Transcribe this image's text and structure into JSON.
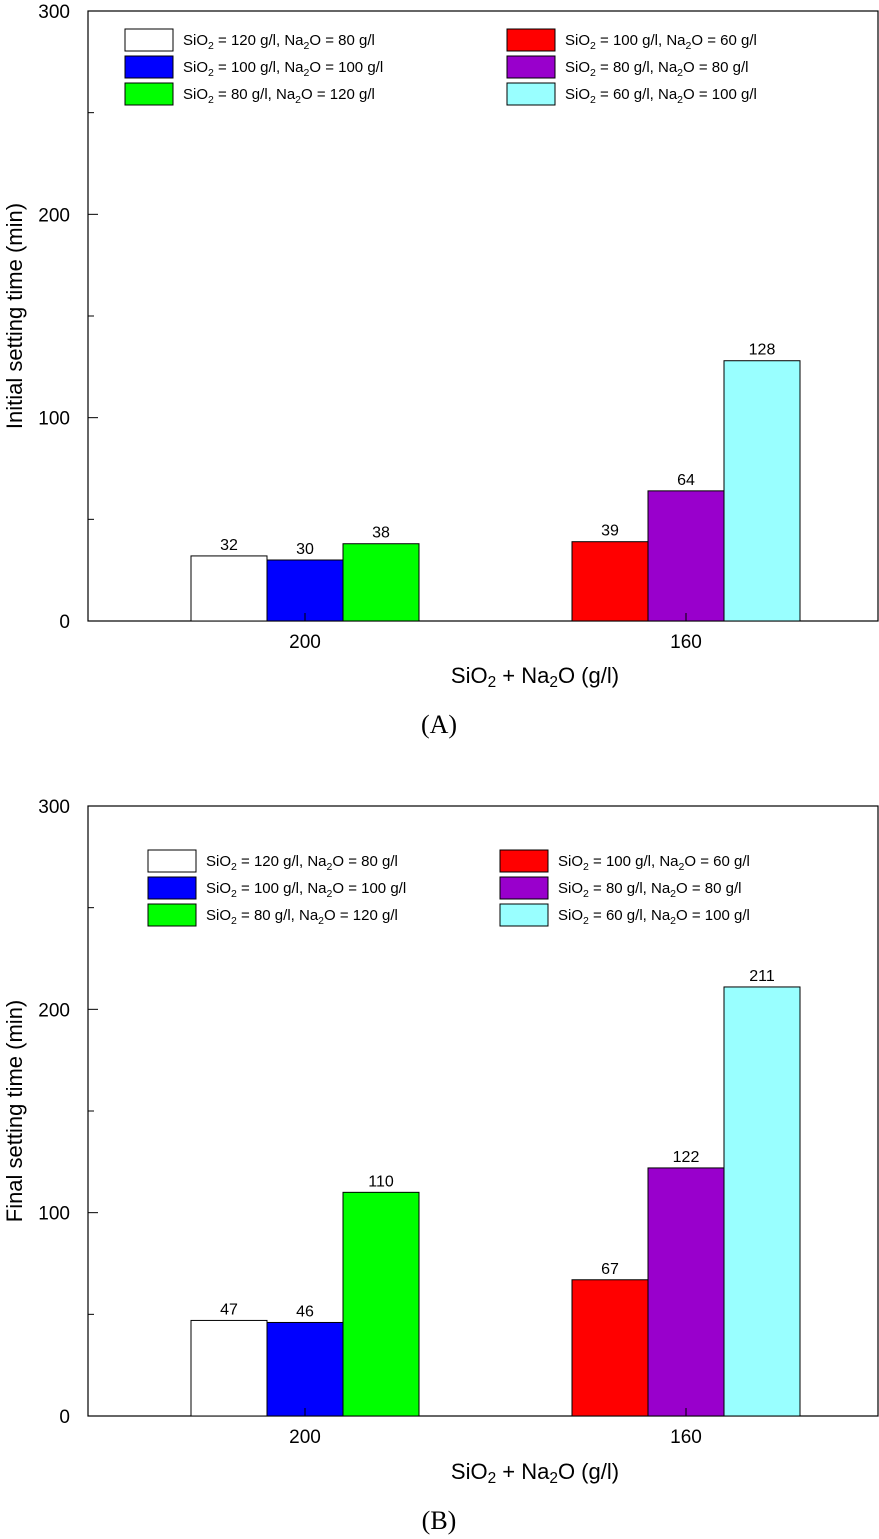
{
  "chart_data": [
    {
      "type": "bar",
      "panel_label": "(A)",
      "title": "",
      "xlabel": {
        "pre": "SiO",
        "sub1": "2",
        "mid": " + Na",
        "sub2": "2",
        "post": "O  (g/l)"
      },
      "ylabel": "Initial setting time (min)",
      "ylim": [
        0,
        300
      ],
      "yticks": [
        0,
        100,
        200,
        300
      ],
      "grid": false,
      "legend_position": "top",
      "groups": [
        {
          "category": "200",
          "bars": [
            {
              "series": 0,
              "value": 32
            },
            {
              "series": 1,
              "value": 30
            },
            {
              "series": 2,
              "value": 38
            }
          ]
        },
        {
          "category": "160",
          "bars": [
            {
              "series": 3,
              "value": 39
            },
            {
              "series": 4,
              "value": 64
            },
            {
              "series": 5,
              "value": 128
            }
          ]
        }
      ]
    },
    {
      "type": "bar",
      "panel_label": "(B)",
      "title": "",
      "xlabel": {
        "pre": "SiO",
        "sub1": "2",
        "mid": " + Na",
        "sub2": "2",
        "post": "O  (g/l)"
      },
      "ylabel": "Final setting time (min)",
      "ylim": [
        0,
        300
      ],
      "yticks": [
        0,
        100,
        200,
        300
      ],
      "grid": false,
      "legend_position": "top",
      "groups": [
        {
          "category": "200",
          "bars": [
            {
              "series": 0,
              "value": 47
            },
            {
              "series": 1,
              "value": 46
            },
            {
              "series": 2,
              "value": 110
            }
          ]
        },
        {
          "category": "160",
          "bars": [
            {
              "series": 3,
              "value": 67
            },
            {
              "series": 4,
              "value": 122
            },
            {
              "series": 5,
              "value": 211
            }
          ]
        }
      ]
    }
  ],
  "series": [
    {
      "name": "SiO2 = 120 g/l, Na2O = 80 g/l",
      "a": "SiO",
      "b": "2",
      "c": " = 120 g/l, Na",
      "d": "2",
      "e": "O =   80 g/l",
      "color": "#ffffff"
    },
    {
      "name": "SiO2 = 100 g/l, Na2O = 100 g/l",
      "a": "SiO",
      "b": "2",
      "c": " = 100 g/l, Na",
      "d": "2",
      "e": "O = 100 g/l",
      "color": "#0000ff"
    },
    {
      "name": "SiO2 = 80 g/l, Na2O = 120 g/l",
      "a": "SiO",
      "b": "2",
      "c": " =   80 g/l, Na",
      "d": "2",
      "e": "O = 120 g/l",
      "color": "#00ff00"
    },
    {
      "name": "SiO2 = 100 g/l, Na2O = 60 g/l",
      "a": "SiO",
      "b": "2",
      "c": " = 100 g/l, Na",
      "d": "2",
      "e": "O =   60 g/l",
      "color": "#ff0000"
    },
    {
      "name": "SiO2 = 80 g/l, Na2O = 80 g/l",
      "a": "SiO",
      "b": "2",
      "c": " =   80 g/l, Na",
      "d": "2",
      "e": "O =   80 g/l",
      "color": "#9900cc"
    },
    {
      "name": "SiO2 = 60 g/l, Na2O = 100 g/l",
      "a": "SiO",
      "b": "2",
      "c": " =   60 g/l, Na",
      "d": "2",
      "e": "O = 100 g/l",
      "color": "#99ffff"
    }
  ]
}
